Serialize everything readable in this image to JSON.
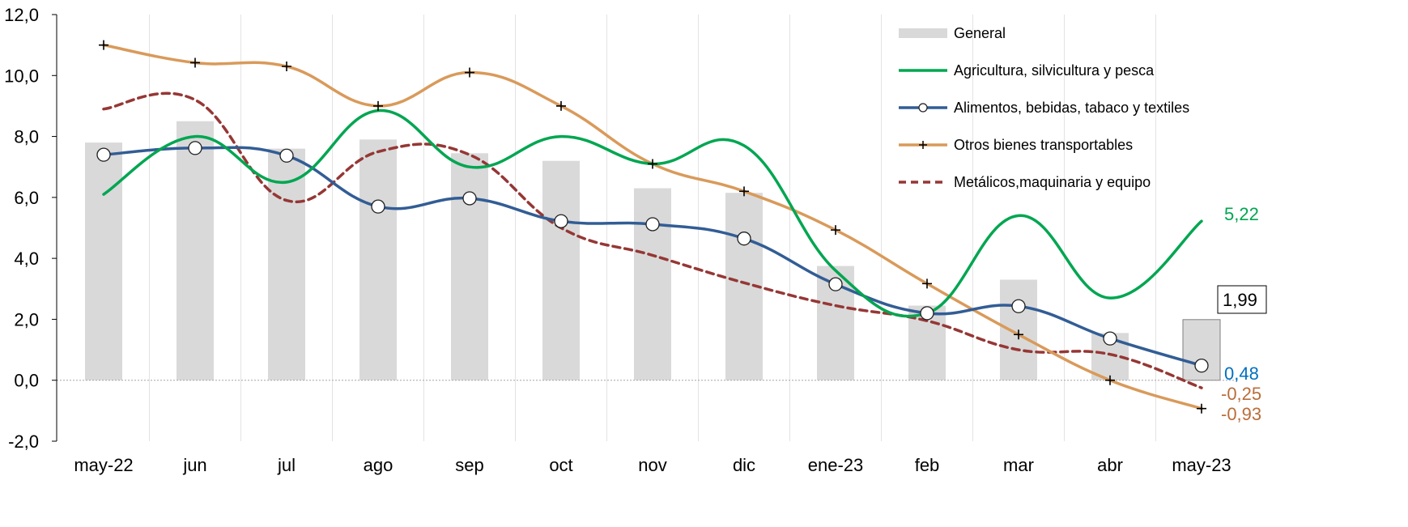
{
  "chart_data": {
    "type": "bar+line",
    "categories": [
      "may-22",
      "jun",
      "jul",
      "ago",
      "sep",
      "oct",
      "nov",
      "dic",
      "ene-23",
      "feb",
      "mar",
      "abr",
      "may-23"
    ],
    "ylim": [
      -2,
      12
    ],
    "yticks": [
      "-2,0",
      "0,0",
      "2,0",
      "4,0",
      "6,0",
      "8,0",
      "10,0",
      "12,0"
    ],
    "ytick_values": [
      -2,
      0,
      2,
      4,
      6,
      8,
      10,
      12
    ],
    "grid": "vertical gridlines",
    "legend_position": "top-right",
    "series": [
      {
        "key": "general",
        "name": "General",
        "kind": "bar",
        "color": "#d9d9d9",
        "values": [
          7.8,
          8.5,
          7.6,
          7.9,
          7.45,
          7.2,
          6.3,
          6.15,
          3.75,
          2.45,
          3.3,
          1.55,
          1.99
        ]
      },
      {
        "key": "agri",
        "name": "Agricultura, silvicultura y pesca",
        "kind": "line",
        "color": "#00a651",
        "marker": "none",
        "dash": "none",
        "values": [
          6.1,
          8.0,
          6.5,
          8.85,
          7.0,
          8.0,
          7.1,
          7.7,
          3.6,
          2.2,
          5.4,
          2.7,
          5.22
        ]
      },
      {
        "key": "alim",
        "name": "Alimentos, bebidas, tabaco y textiles",
        "kind": "line",
        "color": "#325d95",
        "marker": "circle",
        "dash": "none",
        "values": [
          7.4,
          7.62,
          7.37,
          5.7,
          5.97,
          5.22,
          5.12,
          4.65,
          3.15,
          2.2,
          2.43,
          1.37,
          0.48
        ]
      },
      {
        "key": "otros",
        "name": "Otros bienes transportables",
        "kind": "line",
        "color": "#d99a5a",
        "marker": "plus",
        "dash": "none",
        "values": [
          11.0,
          10.42,
          10.3,
          9.0,
          10.1,
          9.0,
          7.1,
          6.2,
          4.93,
          3.17,
          1.5,
          0.0,
          -0.93
        ]
      },
      {
        "key": "metal",
        "name": "Metálicos,maquinaria y equipo",
        "kind": "line",
        "color": "#953735",
        "marker": "none",
        "dash": "dashed",
        "values": [
          8.9,
          9.2,
          5.9,
          7.5,
          7.4,
          5.0,
          4.1,
          3.2,
          2.45,
          1.95,
          1.0,
          0.85,
          -0.25
        ]
      }
    ],
    "end_labels": [
      {
        "text": "5,22",
        "color": "#00a651",
        "value": 5.22
      },
      {
        "text": "1,99",
        "color": "#000000",
        "value": 1.99,
        "boxed": true
      },
      {
        "text": "0,48",
        "color": "#0070c0",
        "value": 0.48
      },
      {
        "text": "-0,25",
        "color": "#b86e3a",
        "value": -0.25
      },
      {
        "text": "-0,93",
        "color": "#b86e3a",
        "value": -0.93
      }
    ]
  }
}
